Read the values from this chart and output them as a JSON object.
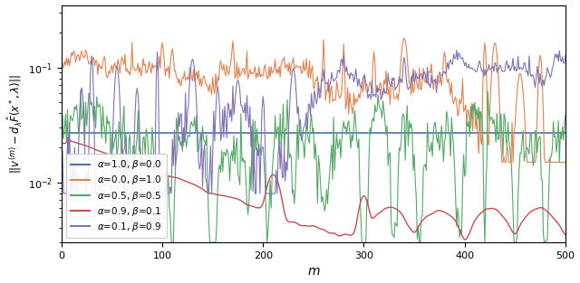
{
  "title": "",
  "xlabel": "$m$",
  "ylabel": "$||v^{(m)} - d_\\lambda \\hat{F}(x^*, \\lambda)||$",
  "xlim": [
    0,
    500
  ],
  "ylim": [
    0.003,
    0.35
  ],
  "legend_entries": [
    {
      "label": "$\\alpha$=1.0, $\\beta$=0.0",
      "color": "#4c72b0"
    },
    {
      "label": "$\\alpha$=0.0, $\\beta$=1.0",
      "color": "#dd8452"
    },
    {
      "label": "$\\alpha$=0.5, $\\beta$=0.5",
      "color": "#55a868"
    },
    {
      "label": "$\\alpha$=0.9, $\\beta$=0.1",
      "color": "#c44e52"
    },
    {
      "label": "$\\alpha$=0.1, $\\beta$=0.9",
      "color": "#8172b2"
    }
  ],
  "blue_level": 0.027,
  "figsize": [
    6.4,
    3.13
  ],
  "dpi": 100
}
